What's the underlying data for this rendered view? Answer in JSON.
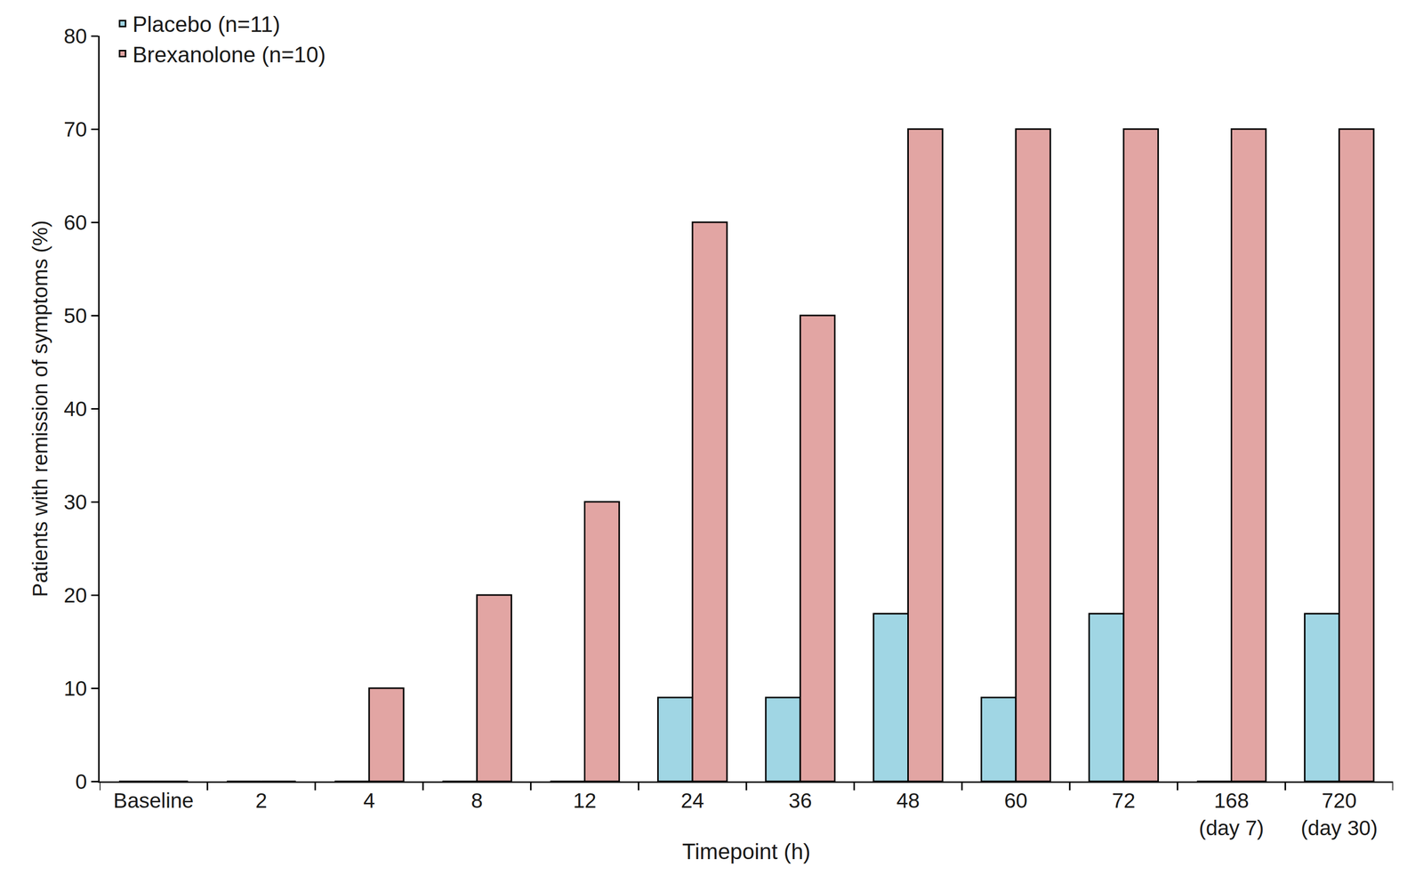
{
  "chart_data": {
    "type": "bar",
    "x_label": "Timepoint (h)",
    "y_label": "Patients with remission of symptoms (%)",
    "categories": [
      "Baseline",
      "2",
      "4",
      "8",
      "12",
      "24",
      "36",
      "48",
      "60",
      "72",
      "168\n(day 7)",
      "720\n(day 30)"
    ],
    "series": [
      {
        "name": "Placebo (n=11)",
        "color": "#a0d6e4",
        "values": [
          0,
          0,
          0,
          0,
          0,
          9,
          9,
          18,
          9,
          18,
          0,
          18
        ]
      },
      {
        "name": "Brexanolone (n=10)",
        "color": "#e2a5a3",
        "values": [
          0,
          0,
          10,
          20,
          30,
          60,
          50,
          70,
          70,
          70,
          70,
          70
        ]
      }
    ],
    "ylim": [
      0,
      80
    ],
    "yticks": [
      0,
      10,
      20,
      30,
      40,
      50,
      60,
      70,
      80
    ],
    "grid": false,
    "legend": "top-left"
  }
}
